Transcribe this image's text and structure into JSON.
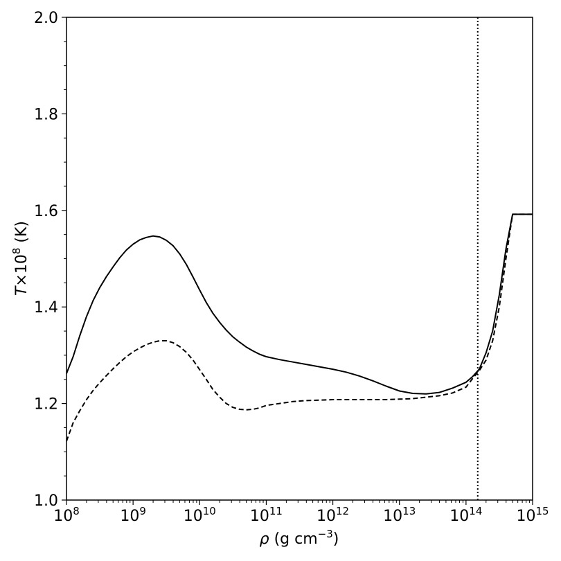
{
  "chart_data": {
    "type": "line",
    "title": "",
    "xlabel": {
      "symbol": "ρ",
      "text": " (g cm",
      "sup": "−3",
      "close": ")"
    },
    "ylabel": {
      "symbol": "T",
      "text": "×10",
      "sup": "8",
      "close": " (K)"
    },
    "xscale": "log",
    "xlim": [
      100000000.0,
      1000000000000000.0
    ],
    "ylim": [
      1.0,
      2.0
    ],
    "x_ticks": [
      {
        "value": 100000000.0,
        "base": "10",
        "exp": "8"
      },
      {
        "value": 1000000000.0,
        "base": "10",
        "exp": "9"
      },
      {
        "value": 10000000000.0,
        "base": "10",
        "exp": "10"
      },
      {
        "value": 100000000000.0,
        "base": "10",
        "exp": "11"
      },
      {
        "value": 1000000000000.0,
        "base": "10",
        "exp": "12"
      },
      {
        "value": 10000000000000.0,
        "base": "10",
        "exp": "13"
      },
      {
        "value": 100000000000000.0,
        "base": "10",
        "exp": "14"
      },
      {
        "value": 1000000000000000.0,
        "base": "10",
        "exp": "15"
      }
    ],
    "y_ticks": [
      {
        "value": 1.0,
        "label": "1.0"
      },
      {
        "value": 1.2,
        "label": "1.2"
      },
      {
        "value": 1.4,
        "label": "1.4"
      },
      {
        "value": 1.6,
        "label": "1.6"
      },
      {
        "value": 1.8,
        "label": "1.8"
      },
      {
        "value": 2.0,
        "label": "2.0"
      }
    ],
    "grid": false,
    "vline": {
      "x": 150000000000000.0,
      "style": "dotted"
    },
    "series": [
      {
        "style": "solid",
        "x": [
          100000000.0,
          126000000.0,
          158000000.0,
          200000000.0,
          251000000.0,
          316000000.0,
          398000000.0,
          501000000.0,
          631000000.0,
          794000000.0,
          1000000000.0,
          1260000000.0,
          1580000000.0,
          2000000000.0,
          2510000000.0,
          3160000000.0,
          3980000000.0,
          5010000000.0,
          6310000000.0,
          7940000000.0,
          10000000000.0,
          12600000000.0,
          15800000000.0,
          20000000000.0,
          25100000000.0,
          31600000000.0,
          39800000000.0,
          50100000000.0,
          63100000000.0,
          79400000000.0,
          100000000000.0,
          158000000000.0,
          251000000000.0,
          398000000000.0,
          631000000000.0,
          1000000000000.0,
          1580000000000.0,
          2510000000000.0,
          3980000000000.0,
          6310000000000.0,
          10000000000000.0,
          15800000000000.0,
          25100000000000.0,
          39800000000000.0,
          63100000000000.0,
          100000000000000.0,
          126000000000000.0,
          158000000000000.0,
          200000000000000.0,
          251000000000000.0,
          316000000000000.0,
          398000000000000.0,
          501000000000000.0,
          631000000000000.0,
          794000000000000.0,
          1000000000000000.0
        ],
        "y": [
          1.262,
          1.297,
          1.34,
          1.38,
          1.413,
          1.44,
          1.463,
          1.483,
          1.502,
          1.518,
          1.53,
          1.539,
          1.544,
          1.547,
          1.545,
          1.538,
          1.527,
          1.51,
          1.488,
          1.462,
          1.435,
          1.409,
          1.387,
          1.368,
          1.352,
          1.338,
          1.327,
          1.317,
          1.309,
          1.302,
          1.297,
          1.291,
          1.286,
          1.281,
          1.276,
          1.271,
          1.265,
          1.257,
          1.247,
          1.236,
          1.226,
          1.221,
          1.22,
          1.223,
          1.232,
          1.244,
          1.256,
          1.271,
          1.305,
          1.35,
          1.425,
          1.52,
          1.592,
          1.592,
          1.592,
          1.592
        ]
      },
      {
        "style": "dashed",
        "x": [
          100000000.0,
          126000000.0,
          158000000.0,
          200000000.0,
          251000000.0,
          316000000.0,
          398000000.0,
          501000000.0,
          631000000.0,
          794000000.0,
          1000000000.0,
          1260000000.0,
          1580000000.0,
          2000000000.0,
          2510000000.0,
          3160000000.0,
          3980000000.0,
          5010000000.0,
          6310000000.0,
          7940000000.0,
          10000000000.0,
          12600000000.0,
          15800000000.0,
          20000000000.0,
          25100000000.0,
          31600000000.0,
          39800000000.0,
          50100000000.0,
          63100000000.0,
          79400000000.0,
          100000000000.0,
          158000000000.0,
          251000000000.0,
          398000000000.0,
          631000000000.0,
          1000000000000.0,
          1580000000000.0,
          2510000000000.0,
          3980000000000.0,
          6310000000000.0,
          10000000000000.0,
          15800000000000.0,
          25100000000000.0,
          39800000000000.0,
          63100000000000.0,
          100000000000000.0,
          126000000000000.0,
          158000000000000.0,
          200000000000000.0,
          251000000000000.0,
          316000000000000.0,
          398000000000000.0,
          501000000000000.0,
          631000000000000.0,
          794000000000000.0,
          1000000000000000.0
        ],
        "y": [
          1.122,
          1.16,
          1.185,
          1.208,
          1.227,
          1.243,
          1.258,
          1.272,
          1.285,
          1.297,
          1.307,
          1.315,
          1.322,
          1.327,
          1.33,
          1.33,
          1.326,
          1.318,
          1.306,
          1.29,
          1.27,
          1.25,
          1.229,
          1.213,
          1.2,
          1.192,
          1.188,
          1.187,
          1.188,
          1.191,
          1.196,
          1.2,
          1.204,
          1.206,
          1.207,
          1.208,
          1.208,
          1.208,
          1.208,
          1.208,
          1.209,
          1.21,
          1.213,
          1.216,
          1.222,
          1.234,
          1.252,
          1.268,
          1.29,
          1.33,
          1.4,
          1.5,
          1.592,
          1.592,
          1.592,
          1.592
        ]
      }
    ]
  }
}
